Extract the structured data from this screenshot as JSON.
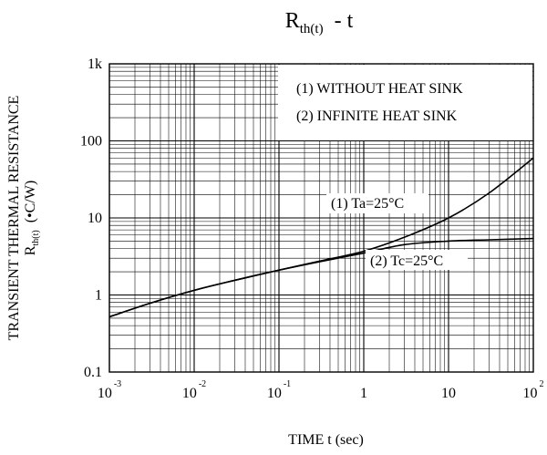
{
  "chart_data": {
    "type": "line",
    "title": {
      "symbol": "R",
      "subscript": "th(t)",
      "rest": "-  t"
    },
    "xlabel": "TIME  t  (sec)",
    "ylabel": {
      "line1": "TRANSIENT THERMAL RESISTANCE",
      "line2_symbol": "R",
      "line2_sub": "th(t)",
      "line2_unit": "(•C/W)"
    },
    "x_scale": "log",
    "y_scale": "log",
    "xlim": [
      0.001,
      100
    ],
    "ylim": [
      0.1,
      1000
    ],
    "x_ticks": [
      {
        "base": "10",
        "exp": "-3"
      },
      {
        "base": "10",
        "exp": "-2"
      },
      {
        "base": "10",
        "exp": "-1"
      },
      {
        "base": "1",
        "exp": ""
      },
      {
        "base": "10",
        "exp": ""
      },
      {
        "base": "10",
        "exp": "2"
      }
    ],
    "y_ticks": [
      "0.1",
      "1",
      "10",
      "100",
      "1k"
    ],
    "grid": true,
    "legend": {
      "placement": "top-right",
      "entries": [
        "(1) WITHOUT HEAT SINK",
        "(2) INFINITE HEAT SINK"
      ]
    },
    "series": [
      {
        "name": "(1) Ta=25°C",
        "x": [
          0.001,
          0.003,
          0.01,
          0.03,
          0.1,
          0.3,
          1,
          3,
          10,
          30,
          100
        ],
        "y": [
          0.52,
          0.78,
          1.15,
          1.55,
          2.1,
          2.75,
          3.7,
          5.6,
          10,
          21,
          60
        ]
      },
      {
        "name": "(2) Tc=25°C",
        "x": [
          0.001,
          0.003,
          0.01,
          0.03,
          0.1,
          0.3,
          1,
          3,
          10,
          30,
          100
        ],
        "y": [
          0.52,
          0.78,
          1.15,
          1.55,
          2.1,
          2.7,
          3.5,
          4.5,
          5.0,
          5.2,
          5.4
        ]
      }
    ],
    "annotations": [
      "(1) Ta=25°C",
      "(2) Tc=25°C"
    ]
  }
}
